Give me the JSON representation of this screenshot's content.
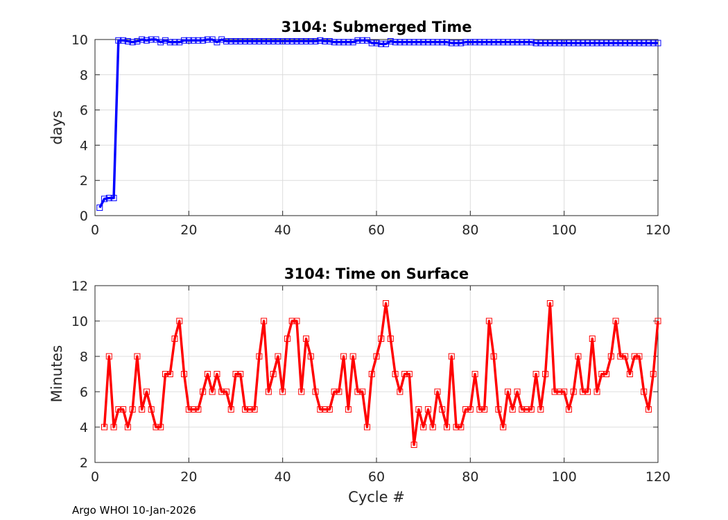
{
  "footer": "Argo WHOI 10-Jan-2026",
  "colors": {
    "top_series": "#0000ff",
    "bottom_series": "#ff0000",
    "grid": "#dcdcdc",
    "axis": "#262626"
  },
  "chart_data": [
    {
      "type": "line",
      "title": "3104: Submerged Time",
      "xlabel": "",
      "ylabel": "days",
      "xlim": [
        0,
        120
      ],
      "ylim": [
        0,
        10
      ],
      "xticks": [
        0,
        20,
        40,
        60,
        80,
        100,
        120
      ],
      "yticks": [
        0,
        2,
        4,
        6,
        8,
        10
      ],
      "grid": true,
      "marker": "square",
      "series": [
        {
          "name": "Submerged Time",
          "color": "#0000ff",
          "x": [
            1,
            2,
            3,
            4,
            5,
            6,
            7,
            8,
            9,
            10,
            11,
            12,
            13,
            14,
            15,
            16,
            17,
            18,
            19,
            20,
            21,
            22,
            23,
            24,
            25,
            26,
            27,
            28,
            29,
            30,
            31,
            32,
            33,
            34,
            35,
            36,
            37,
            38,
            39,
            40,
            41,
            42,
            43,
            44,
            45,
            46,
            47,
            48,
            49,
            50,
            51,
            52,
            53,
            54,
            55,
            56,
            57,
            58,
            59,
            60,
            61,
            62,
            63,
            64,
            65,
            66,
            67,
            68,
            69,
            70,
            71,
            72,
            73,
            74,
            75,
            76,
            77,
            78,
            79,
            80,
            81,
            82,
            83,
            84,
            85,
            86,
            87,
            88,
            89,
            90,
            91,
            92,
            93,
            94,
            95,
            96,
            97,
            98,
            99,
            100,
            101,
            102,
            103,
            104,
            105,
            106,
            107,
            108,
            109,
            110,
            111,
            112,
            113,
            114,
            115,
            116,
            117,
            118,
            119,
            120
          ],
          "values": [
            0.45,
            0.95,
            1.0,
            1.0,
            9.95,
            9.95,
            9.9,
            9.85,
            9.9,
            10.0,
            9.95,
            10.0,
            10.0,
            9.85,
            9.95,
            9.85,
            9.85,
            9.85,
            9.95,
            9.95,
            9.95,
            9.95,
            9.95,
            10.0,
            10.0,
            9.85,
            10.0,
            9.9,
            9.9,
            9.9,
            9.9,
            9.9,
            9.9,
            9.9,
            9.9,
            9.9,
            9.9,
            9.9,
            9.9,
            9.9,
            9.9,
            9.9,
            9.9,
            9.9,
            9.9,
            9.9,
            9.9,
            9.95,
            9.9,
            9.9,
            9.85,
            9.85,
            9.85,
            9.85,
            9.85,
            9.95,
            9.95,
            9.95,
            9.8,
            9.8,
            9.75,
            9.75,
            9.9,
            9.85,
            9.85,
            9.85,
            9.85,
            9.85,
            9.85,
            9.85,
            9.85,
            9.85,
            9.85,
            9.85,
            9.85,
            9.8,
            9.8,
            9.8,
            9.85,
            9.85,
            9.85,
            9.85,
            9.85,
            9.85,
            9.85,
            9.85,
            9.85,
            9.85,
            9.85,
            9.85,
            9.85,
            9.85,
            9.85,
            9.8,
            9.8,
            9.8,
            9.8,
            9.8,
            9.8,
            9.8,
            9.8,
            9.8,
            9.8,
            9.8,
            9.8,
            9.8,
            9.8,
            9.8,
            9.8,
            9.8,
            9.8,
            9.8,
            9.8,
            9.8,
            9.8,
            9.8,
            9.8,
            9.8,
            9.8,
            9.8
          ]
        }
      ]
    },
    {
      "type": "line",
      "title": "3104: Time on Surface",
      "xlabel": "Cycle #",
      "ylabel": "Minutes",
      "xlim": [
        0,
        120
      ],
      "ylim": [
        2,
        12
      ],
      "xticks": [
        0,
        20,
        40,
        60,
        80,
        100,
        120
      ],
      "yticks": [
        2,
        4,
        6,
        8,
        10,
        12
      ],
      "grid": true,
      "marker": "square",
      "series": [
        {
          "name": "Time on Surface",
          "color": "#ff0000",
          "x": [
            2,
            3,
            4,
            5,
            6,
            7,
            8,
            9,
            10,
            11,
            12,
            13,
            14,
            15,
            16,
            17,
            18,
            19,
            20,
            21,
            22,
            23,
            24,
            25,
            26,
            27,
            28,
            29,
            30,
            31,
            32,
            33,
            34,
            35,
            36,
            37,
            38,
            39,
            40,
            41,
            42,
            43,
            44,
            45,
            46,
            47,
            48,
            49,
            50,
            51,
            52,
            53,
            54,
            55,
            56,
            57,
            58,
            59,
            60,
            61,
            62,
            63,
            64,
            65,
            66,
            67,
            68,
            69,
            70,
            71,
            72,
            73,
            74,
            75,
            76,
            77,
            78,
            79,
            80,
            81,
            82,
            83,
            84,
            85,
            86,
            87,
            88,
            89,
            90,
            91,
            92,
            93,
            94,
            95,
            96,
            97,
            98,
            99,
            100,
            101,
            102,
            103,
            104,
            105,
            106,
            107,
            108,
            109,
            110,
            111,
            112,
            113,
            114,
            115,
            116,
            117,
            118,
            119,
            120
          ],
          "values": [
            4,
            8,
            4,
            5,
            5,
            4,
            5,
            8,
            5,
            6,
            5,
            4,
            4,
            7,
            7,
            9,
            10,
            7,
            5,
            5,
            5,
            6,
            7,
            6,
            7,
            6,
            6,
            5,
            7,
            7,
            5,
            5,
            5,
            8,
            10,
            6,
            7,
            8,
            6,
            9,
            10,
            10,
            6,
            9,
            8,
            6,
            5,
            5,
            5,
            6,
            6,
            8,
            5,
            8,
            6,
            6,
            4,
            7,
            8,
            9,
            11,
            9,
            7,
            6,
            7,
            7,
            3,
            5,
            4,
            5,
            4,
            6,
            5,
            4,
            8,
            4,
            4,
            5,
            5,
            7,
            5,
            5,
            10,
            8,
            5,
            4,
            6,
            5,
            6,
            5,
            5,
            5,
            7,
            5,
            7,
            11,
            6,
            6,
            6,
            5,
            6,
            8,
            6,
            6,
            9,
            6,
            7,
            7,
            8,
            10,
            8,
            8,
            7,
            8,
            8,
            6,
            5,
            7,
            10
          ]
        }
      ]
    }
  ]
}
